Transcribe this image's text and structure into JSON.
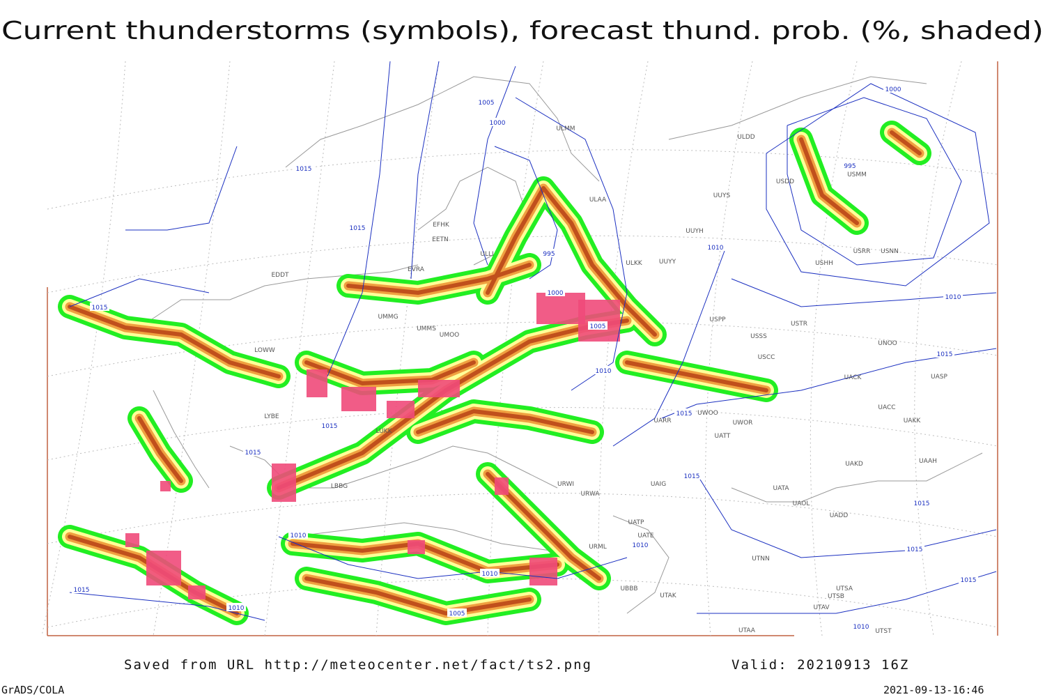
{
  "title": "Current thunderstorms (symbols), forecast thund. prob. (%, shaded)",
  "isobar_labels": [
    "1005",
    "1000",
    "1015",
    "1015",
    "995",
    "1000",
    "1005",
    "1010",
    "1015",
    "1015",
    "1015",
    "1010",
    "1010",
    "1015",
    "1015",
    "1015",
    "1015",
    "1015",
    "1010",
    "1010",
    "1005",
    "1010",
    "1015",
    "1010",
    "1015",
    "1000",
    "995",
    "1010"
  ],
  "station_labels": [
    "ULMM",
    "ULDD",
    "ULAA",
    "UUYS",
    "USDD",
    "USMM",
    "UUYH",
    "EFHK",
    "EETN",
    "ULLI",
    "UUYY",
    "ULKK",
    "USHH",
    "USRR",
    "USNN",
    "EVRA",
    "EDDT",
    "UMMG",
    "UMMS",
    "UMOO",
    "LOWW",
    "LYBE",
    "LUKK",
    "USPP",
    "USSS",
    "USTR",
    "UNOO",
    "USCC",
    "UACC",
    "UAKK",
    "UASP",
    "UACK",
    "UATT",
    "UARR",
    "UWOO",
    "UWOR",
    "UAKD",
    "UAAH",
    "UATA",
    "UAOL",
    "UADD",
    "UTNN",
    "UTSA",
    "UTSB",
    "UTAV",
    "UTST",
    "UTAA",
    "UBBB",
    "UTAK",
    "UATE",
    "UATP",
    "UAIG",
    "URWI",
    "URWA",
    "URML",
    "LBBG"
  ],
  "footer": {
    "source": "Saved from URL http://meteocenter.net/fact/ts2.png",
    "valid": "Valid: 20210913 16Z",
    "software": "GrADS/COLA",
    "timestamp": "2021-09-13-16:46"
  }
}
